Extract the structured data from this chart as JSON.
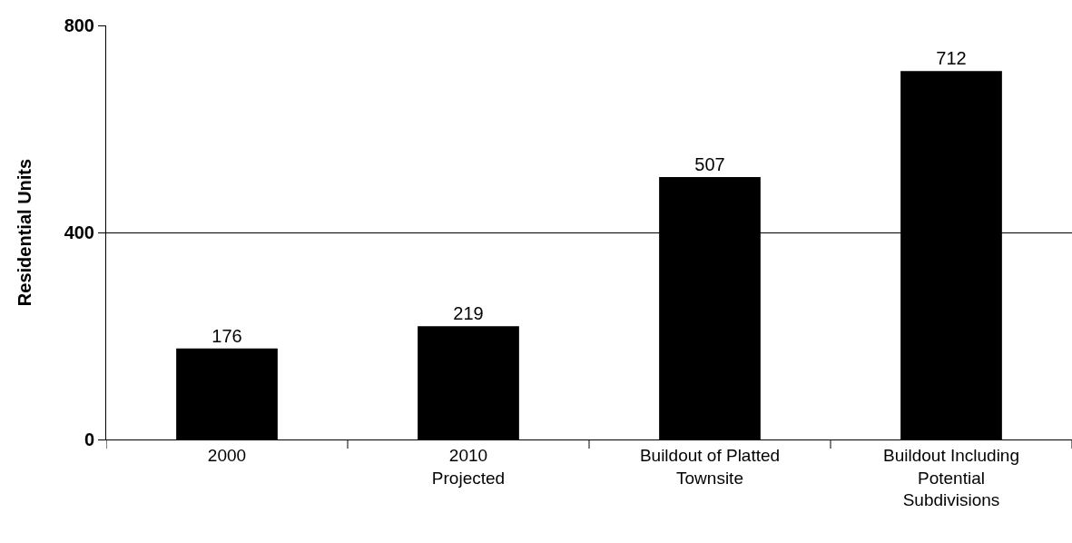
{
  "chart_data": {
    "type": "bar",
    "ylabel": "Residential Units",
    "categories": [
      "2000",
      "2010\nProjected",
      "Buildout of Platted\nTownsite",
      "Buildout Including\nPotential\nSubdivisions"
    ],
    "values": [
      176,
      219,
      507,
      712
    ],
    "color": "#000000",
    "ylim": [
      0,
      800
    ],
    "yticks": [
      0,
      400,
      800
    ],
    "grid": "y",
    "data_labels": true
  }
}
